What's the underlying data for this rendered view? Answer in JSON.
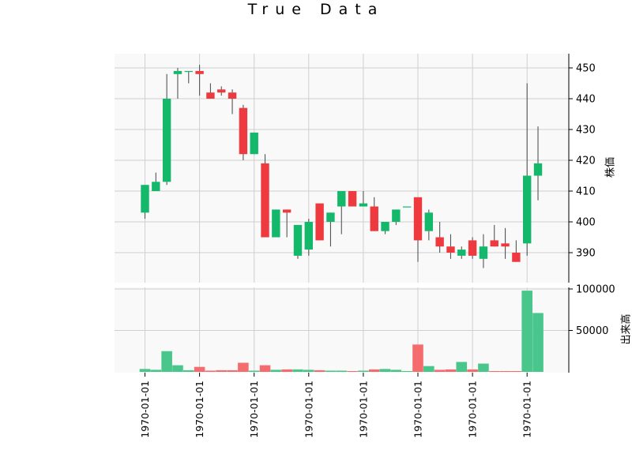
{
  "title": "True Data",
  "chart_data": [
    {
      "type": "candlestick",
      "ylabel": "株価",
      "ylim": [
        385,
        452
      ],
      "yticks": [
        390,
        400,
        410,
        420,
        430,
        440,
        450
      ],
      "grid": true,
      "xtick_labels": [
        "1970-01-01",
        "1970-01-01",
        "1970-01-01",
        "1970-01-01",
        "1970-01-01",
        "1970-01-01",
        "1970-01-01",
        "1970-01-01"
      ],
      "candles": [
        {
          "open": 403,
          "high": 412,
          "low": 401,
          "close": 412
        },
        {
          "open": 410,
          "high": 416,
          "low": 410,
          "close": 413
        },
        {
          "open": 413,
          "high": 448,
          "low": 412,
          "close": 440
        },
        {
          "open": 448,
          "high": 450,
          "low": 440,
          "close": 449
        },
        {
          "open": 449,
          "high": 449,
          "low": 445,
          "close": 449
        },
        {
          "open": 449,
          "high": 451,
          "low": 441,
          "close": 448
        },
        {
          "open": 442,
          "high": 445,
          "low": 440,
          "close": 440
        },
        {
          "open": 443,
          "high": 444,
          "low": 441,
          "close": 442
        },
        {
          "open": 442,
          "high": 443,
          "low": 435,
          "close": 440
        },
        {
          "open": 437,
          "high": 438,
          "low": 420,
          "close": 422
        },
        {
          "open": 422,
          "high": 429,
          "low": 422,
          "close": 429
        },
        {
          "open": 419,
          "high": 422,
          "low": 395,
          "close": 395
        },
        {
          "open": 395,
          "high": 404,
          "low": 395,
          "close": 404
        },
        {
          "open": 404,
          "high": 404,
          "low": 395,
          "close": 403
        },
        {
          "open": 389,
          "high": 399,
          "low": 388,
          "close": 399
        },
        {
          "open": 391,
          "high": 401,
          "low": 389,
          "close": 400
        },
        {
          "open": 406,
          "high": 406,
          "low": 394,
          "close": 394
        },
        {
          "open": 400,
          "high": 403,
          "low": 392,
          "close": 403
        },
        {
          "open": 405,
          "high": 410,
          "low": 396,
          "close": 410
        },
        {
          "open": 410,
          "high": 410,
          "low": 405,
          "close": 405
        },
        {
          "open": 405,
          "high": 410,
          "low": 405,
          "close": 406
        },
        {
          "open": 405,
          "high": 408,
          "low": 397,
          "close": 397
        },
        {
          "open": 397,
          "high": 400,
          "low": 396,
          "close": 400
        },
        {
          "open": 400,
          "high": 404,
          "low": 399,
          "close": 404
        },
        {
          "open": 405,
          "high": 405,
          "low": 405,
          "close": 405
        },
        {
          "open": 408,
          "high": 408,
          "low": 387,
          "close": 394
        },
        {
          "open": 397,
          "high": 404,
          "low": 394,
          "close": 403
        },
        {
          "open": 395,
          "high": 400,
          "low": 390,
          "close": 392
        },
        {
          "open": 392,
          "high": 396,
          "low": 388,
          "close": 390
        },
        {
          "open": 389,
          "high": 392,
          "low": 388,
          "close": 391
        },
        {
          "open": 394,
          "high": 395,
          "low": 388,
          "close": 389
        },
        {
          "open": 388,
          "high": 396,
          "low": 385,
          "close": 392
        },
        {
          "open": 394,
          "high": 399,
          "low": 392,
          "close": 392
        },
        {
          "open": 393,
          "high": 398,
          "low": 388,
          "close": 392
        },
        {
          "open": 390,
          "high": 394,
          "low": 387,
          "close": 387
        },
        {
          "open": 393,
          "high": 445,
          "low": 389,
          "close": 415
        },
        {
          "open": 415,
          "high": 431,
          "low": 407,
          "close": 419
        }
      ]
    },
    {
      "type": "bar",
      "ylabel": "出来高",
      "ylim": [
        0,
        100000
      ],
      "yticks": [
        50000,
        100000
      ],
      "values": [
        3500,
        2500,
        25000,
        8000,
        2000,
        6000,
        1500,
        2000,
        2000,
        11000,
        1500,
        8000,
        2500,
        3000,
        3000,
        2500,
        2000,
        1500,
        1500,
        1000,
        1500,
        3000,
        3500,
        2500,
        1000,
        33000,
        7000,
        2500,
        3000,
        12000,
        3000,
        10000,
        1000,
        1000,
        1000,
        98000,
        71000
      ]
    }
  ],
  "colors": {
    "up": "#13b86b",
    "down": "#ee3a3f",
    "up_volume": "#49c68c",
    "down_volume": "#f56c6f",
    "panel": "#f9f9f9",
    "grid": "#d0d0d0",
    "wick": "#555555"
  }
}
